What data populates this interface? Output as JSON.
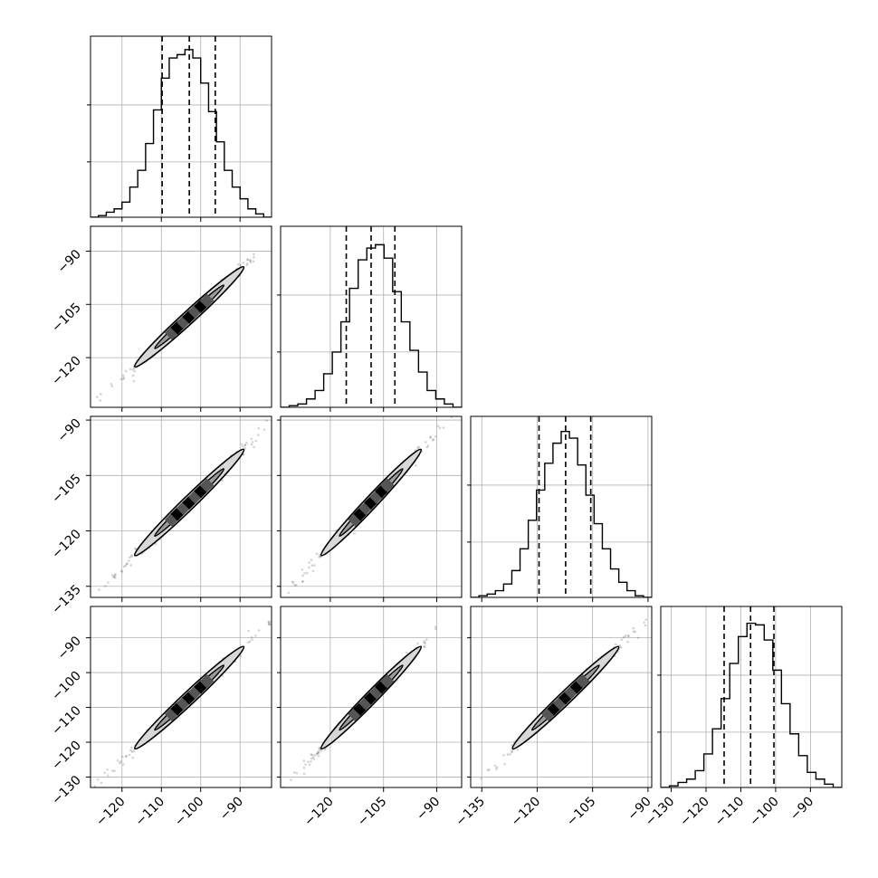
{
  "chart_data": {
    "type": "corner",
    "n_params": 4,
    "quantile_lines": "dashed vertical lines at 16th, 50th and 84th percentiles",
    "grid": true,
    "colors": {
      "line": "#000000",
      "grid": "#b0b0b0",
      "points": "#555555",
      "fill": "#d8d8d8"
    },
    "parameters": [
      {
        "range": [
          -128,
          -82
        ],
        "xticks": [
          -120,
          -110,
          -100,
          -90
        ],
        "quantiles": [
          -109.8,
          -102.9,
          -96.3
        ],
        "hist_peak": -100.5
      },
      {
        "range": [
          -134,
          -83
        ],
        "xticks": [
          -120,
          -105,
          -90
        ],
        "quantiles": [
          -115.5,
          -108.5,
          -101.8
        ],
        "hist_peak": -106.5
      },
      {
        "range": [
          -138,
          -89
        ],
        "xticks": [
          -135,
          -120,
          -105,
          -90
        ],
        "quantiles": [
          -119.5,
          -112.3,
          -105.5
        ],
        "hist_peak": -111.5
      },
      {
        "range": [
          -133,
          -81
        ],
        "xticks": [
          -130,
          -120,
          -110,
          -100,
          -90
        ],
        "quantiles": [
          -114.8,
          -107.2,
          -100.5
        ],
        "hist_peak": -106.5
      }
    ],
    "yticks": {
      "1": [
        -90,
        -105,
        -120
      ],
      "2": [
        -90,
        -105,
        -120,
        -135
      ],
      "3": [
        -90,
        -100,
        -110,
        -120,
        -130
      ]
    },
    "hist_ticks": {
      "0": [
        0.67,
        0.33
      ],
      "1": [
        0.67,
        0.33
      ],
      "2": [
        0.67,
        0.33
      ],
      "3": [
        0.67,
        0.33
      ]
    },
    "histograms": {
      "0": [
        0.0,
        0.01,
        0.03,
        0.05,
        0.09,
        0.18,
        0.28,
        0.44,
        0.64,
        0.83,
        0.95,
        0.97,
        1.0,
        0.95,
        0.8,
        0.63,
        0.45,
        0.28,
        0.18,
        0.11,
        0.05,
        0.02,
        0.0
      ],
      "1": [
        0.0,
        0.01,
        0.02,
        0.05,
        0.1,
        0.2,
        0.33,
        0.51,
        0.71,
        0.88,
        0.95,
        0.97,
        0.89,
        0.69,
        0.51,
        0.34,
        0.21,
        0.1,
        0.05,
        0.02,
        0.0
      ],
      "2": [
        0.0,
        0.01,
        0.02,
        0.04,
        0.08,
        0.16,
        0.29,
        0.46,
        0.64,
        0.8,
        0.92,
        0.99,
        0.95,
        0.79,
        0.61,
        0.44,
        0.29,
        0.17,
        0.09,
        0.04,
        0.01,
        0.0
      ],
      "3": [
        0.0,
        0.01,
        0.03,
        0.05,
        0.1,
        0.2,
        0.35,
        0.53,
        0.74,
        0.9,
        0.98,
        0.97,
        0.88,
        0.7,
        0.5,
        0.32,
        0.19,
        0.09,
        0.05,
        0.02,
        0.0
      ]
    },
    "correlation": 0.995,
    "samples_per_panel": 260
  }
}
